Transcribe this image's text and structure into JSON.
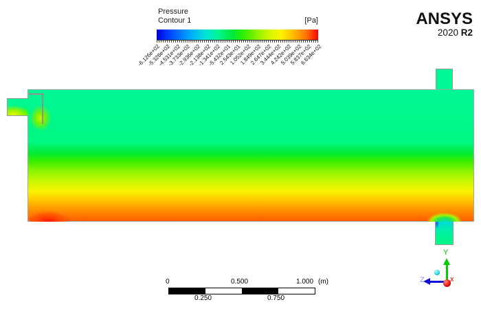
{
  "legend": {
    "title": "Pressure",
    "subtitle": "Contour 1",
    "units": "[Pa]",
    "tick_labels": [
      "-6.126e+02",
      "-5.328e+02",
      "-4.531e+02",
      "-3.733e+02",
      "-2.936e+02",
      "-2.138e+02",
      "-1.341e+02",
      "-5.432e+01",
      "2.543e+01",
      "1.052e+02",
      "1.849e+02",
      "2.647e+02",
      "3.444e+02",
      "4.242e+02",
      "5.039e+02",
      "5.837e+02",
      "6.634e+02"
    ],
    "colorbar_stops": [
      {
        "p": 0,
        "c": "#0000d2"
      },
      {
        "p": 6,
        "c": "#0033ff"
      },
      {
        "p": 20,
        "c": "#00a4ff"
      },
      {
        "p": 30,
        "c": "#00e2d8"
      },
      {
        "p": 38,
        "c": "#00f595"
      },
      {
        "p": 47,
        "c": "#00e93a"
      },
      {
        "p": 54,
        "c": "#32ee00"
      },
      {
        "p": 62,
        "c": "#8cf300"
      },
      {
        "p": 70,
        "c": "#d4f700"
      },
      {
        "p": 77,
        "c": "#fff400"
      },
      {
        "p": 85,
        "c": "#ffb900"
      },
      {
        "p": 93,
        "c": "#ff6e00"
      },
      {
        "p": 100,
        "c": "#f70400"
      }
    ]
  },
  "logo": {
    "brand": "ANSYS",
    "version_year": "2020",
    "version_release": "R2"
  },
  "contour": {
    "vertical_stops": [
      {
        "p": 0,
        "c": "#00f795"
      },
      {
        "p": 40,
        "c": "#00f782"
      },
      {
        "p": 48,
        "c": "#00ea38"
      },
      {
        "p": 54,
        "c": "#35ef00"
      },
      {
        "p": 62,
        "c": "#8df400"
      },
      {
        "p": 70,
        "c": "#ccf700"
      },
      {
        "p": 77,
        "c": "#f9f300"
      },
      {
        "p": 83,
        "c": "#ffce00"
      },
      {
        "p": 89,
        "c": "#ffa200"
      },
      {
        "p": 95,
        "c": "#ff7c00"
      },
      {
        "p": 100,
        "c": "#ff5a00"
      }
    ]
  },
  "scale_bar": {
    "label_0": "0",
    "label_050": "0.500",
    "label_100": "1.000",
    "unit": "(m)",
    "label_025": "0.250",
    "label_075": "0.750"
  },
  "triad": {
    "x_label": "X",
    "y_label": "Y",
    "z_label": "Z"
  },
  "colors": {
    "spring_green": "#00f795",
    "deep_orange": "#ff5a00",
    "red_hotspot": "#ff1500",
    "outlet_cyan": "#00d8dc",
    "axis_x": "#e00000",
    "axis_y": "#00cc00",
    "axis_z": "#1010dd"
  },
  "chart_data": {
    "type": "heatmap",
    "title": "Pressure Contour 1",
    "units": "Pa",
    "colorbar_range": [
      -612.6,
      663.4
    ],
    "levels": [
      -612.6,
      -532.8,
      -453.1,
      -373.3,
      -293.6,
      -213.8,
      -134.1,
      -54.32,
      25.43,
      105.2,
      184.9,
      264.7,
      344.4,
      424.2,
      503.9,
      583.7,
      663.4
    ],
    "colormap": "rainbow (blue=low, red=high)",
    "scale_bar_m": [
      0,
      0.25,
      0.5,
      0.75,
      1.0
    ],
    "description": "Side view of a horizontal tank: pressure stratifies vertically from ~0-100 Pa (spring green) in the upper half through yellow (~300 Pa) and orange to ~600 Pa (deep orange/red) at the bottom wall; a red high-pressure spot sits at the bottom-left corner; an inlet stub with an L-shaped baffle enters at the upper left; a stub outlet sits on the top-right; a bottom-right outlet stub shows low pressure (cyan/green, ~ -100 to -600 Pa) with a small blue minimum at its edge."
  }
}
